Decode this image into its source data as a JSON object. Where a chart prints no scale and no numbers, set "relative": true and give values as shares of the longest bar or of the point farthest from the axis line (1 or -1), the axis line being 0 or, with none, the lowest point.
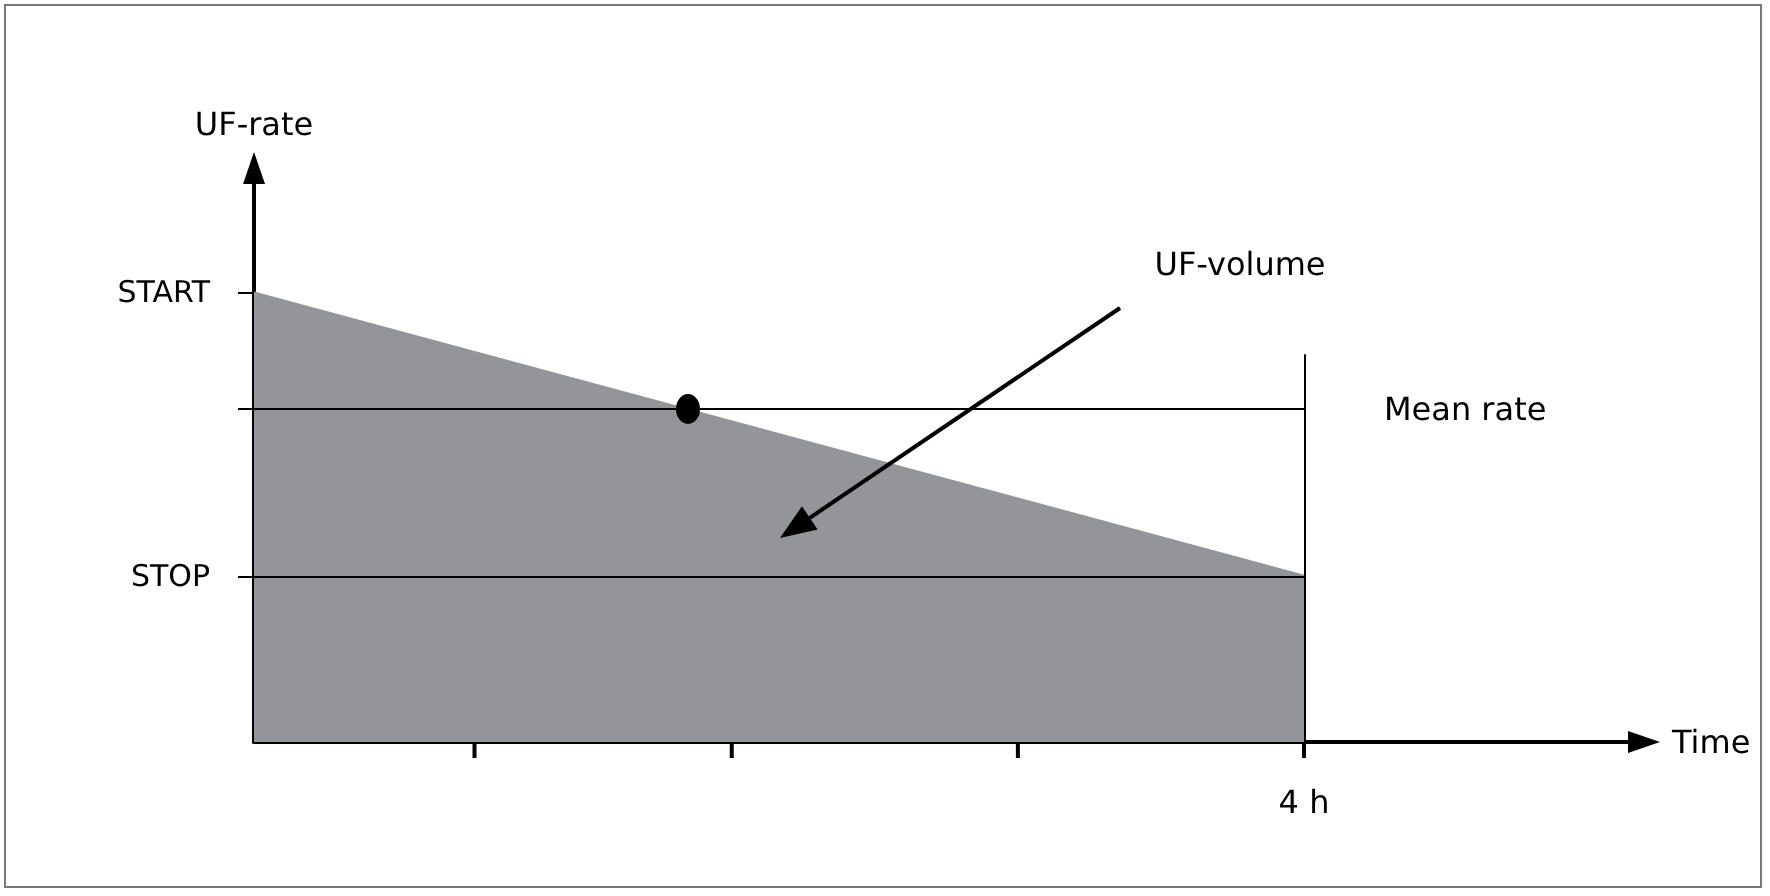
{
  "chart_data": {
    "type": "area",
    "xlabel": "Time",
    "ylabel": "UF-rate",
    "relative": true,
    "categories": [
      null,
      null
    ],
    "series": [
      {
        "color": "#939598",
        "values": [
          1,
          0.37
        ]
      }
    ],
    "ref_lines": [
      {
        "axis": "y",
        "value": 0.74,
        "label": "Mean rate",
        "color": "#000000"
      },
      {
        "axis": "y",
        "value": 0.37,
        "label": null,
        "color": "#000000"
      }
    ],
    "annotations": [
      "UF-volume",
      "START",
      "STOP",
      "4 h"
    ],
    "grid": false
  }
}
